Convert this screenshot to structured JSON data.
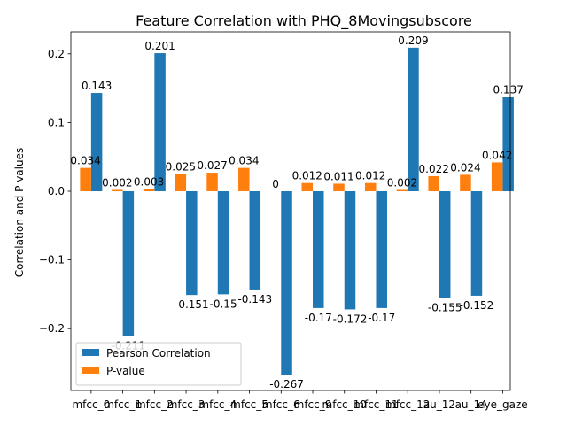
{
  "chart_data": {
    "type": "bar",
    "title": "Feature Correlation with PHQ_8Movingsubscore",
    "xlabel": "",
    "ylabel": "Correlation and P values",
    "ylim": [
      -0.29,
      0.232
    ],
    "yticks": [
      -0.2,
      -0.1,
      0.0,
      0.1,
      0.2
    ],
    "ytick_labels": [
      "−0.2",
      "−0.1",
      "0.0",
      "0.1",
      "0.2"
    ],
    "categories": [
      "mfcc_0",
      "mfcc_1",
      "mfcc_2",
      "mfcc_3",
      "mfcc_4",
      "mfcc_5",
      "mfcc_6",
      "mfcc_9",
      "mfcc_10",
      "mfcc_11",
      "mfcc_12",
      "au_12",
      "au_14",
      "eye_gaze"
    ],
    "category_labels": [
      "mfcc_0",
      "mfcc_1",
      "mfcc_2",
      "mfcc_3",
      "mfcc_4",
      "mfcc_5",
      "mfcc_6",
      "mfcc_9",
      "mfcc_10",
      "mfcc_11",
      "mfcc_12",
      "au_12",
      "au_14",
      "eye_gaze"
    ],
    "series": [
      {
        "name": "Pearson Correlation",
        "color": "#1f77b4",
        "values": [
          0.143,
          -0.211,
          0.201,
          -0.151,
          -0.15,
          -0.143,
          -0.267,
          -0.17,
          -0.172,
          -0.17,
          0.209,
          -0.155,
          -0.152,
          0.137
        ],
        "labels": [
          "0.143",
          "-0.211",
          "0.201",
          "-0.151",
          "-0.15",
          "-0.143",
          "-0.267",
          "-0.17",
          "-0.172",
          "-0.17",
          "0.209",
          "-0.155",
          "-0.152",
          "0.137"
        ]
      },
      {
        "name": "P-value",
        "color": "#ff7f0e",
        "values": [
          0.034,
          0.002,
          0.003,
          0.025,
          0.027,
          0.034,
          0.0,
          0.012,
          0.011,
          0.012,
          0.002,
          0.022,
          0.024,
          0.042
        ],
        "labels": [
          "0.034",
          "0.002",
          "0.003",
          "0.025",
          "0.027",
          "0.034",
          "0",
          "0.012",
          "0.011",
          "0.012",
          "0.002",
          "0.022",
          "0.024",
          "0.042"
        ]
      }
    ],
    "legend": {
      "placement": "lower-left"
    },
    "grid": false
  }
}
